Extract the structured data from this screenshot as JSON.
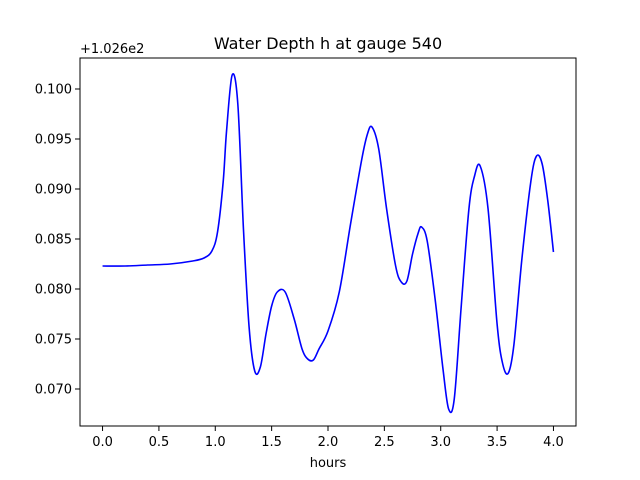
{
  "chart_data": {
    "type": "line",
    "title": "Water Depth h at gauge 540",
    "xlabel": "hours",
    "ylabel": "",
    "y_offset_text": "+1.026e2",
    "xlim": [
      -0.2,
      4.2
    ],
    "ylim": [
      0.0663,
      0.1031
    ],
    "x_ticks": [
      0.0,
      0.5,
      1.0,
      1.5,
      2.0,
      2.5,
      3.0,
      3.5,
      4.0
    ],
    "x_tick_labels": [
      "0.0",
      "0.5",
      "1.0",
      "1.5",
      "2.0",
      "2.5",
      "3.0",
      "3.5",
      "4.0"
    ],
    "y_ticks": [
      0.07,
      0.075,
      0.08,
      0.085,
      0.09,
      0.095,
      0.1
    ],
    "y_tick_labels": [
      "0.070",
      "0.075",
      "0.080",
      "0.085",
      "0.090",
      "0.095",
      "0.100"
    ],
    "grid": false,
    "series": [
      {
        "color": "#0000ff",
        "x": [
          0.0,
          0.2,
          0.4,
          0.6,
          0.8,
          0.9,
          0.97,
          1.02,
          1.07,
          1.1,
          1.15,
          1.2,
          1.25,
          1.3,
          1.35,
          1.4,
          1.45,
          1.5,
          1.55,
          1.62,
          1.7,
          1.77,
          1.82,
          1.87,
          1.92,
          2.0,
          2.1,
          2.2,
          2.3,
          2.35,
          2.39,
          2.45,
          2.52,
          2.6,
          2.65,
          2.7,
          2.75,
          2.8,
          2.83,
          2.88,
          2.95,
          3.02,
          3.07,
          3.12,
          3.18,
          3.25,
          3.3,
          3.35,
          3.42,
          3.5,
          3.55,
          3.6,
          3.65,
          3.72,
          3.8,
          3.85,
          3.9,
          3.95,
          4.0
        ],
        "y": [
          0.0823,
          0.0823,
          0.0824,
          0.0825,
          0.0828,
          0.0831,
          0.0838,
          0.0857,
          0.0907,
          0.0958,
          0.1014,
          0.0985,
          0.086,
          0.0762,
          0.0718,
          0.0722,
          0.0755,
          0.0783,
          0.0797,
          0.0797,
          0.077,
          0.074,
          0.073,
          0.0729,
          0.074,
          0.0758,
          0.0797,
          0.0865,
          0.093,
          0.0955,
          0.0962,
          0.094,
          0.088,
          0.0823,
          0.0807,
          0.0808,
          0.0835,
          0.0856,
          0.0862,
          0.0848,
          0.079,
          0.072,
          0.068,
          0.069,
          0.078,
          0.088,
          0.0913,
          0.0923,
          0.088,
          0.0765,
          0.0725,
          0.0716,
          0.0745,
          0.083,
          0.0908,
          0.0933,
          0.0925,
          0.0888,
          0.0837
        ]
      }
    ]
  }
}
